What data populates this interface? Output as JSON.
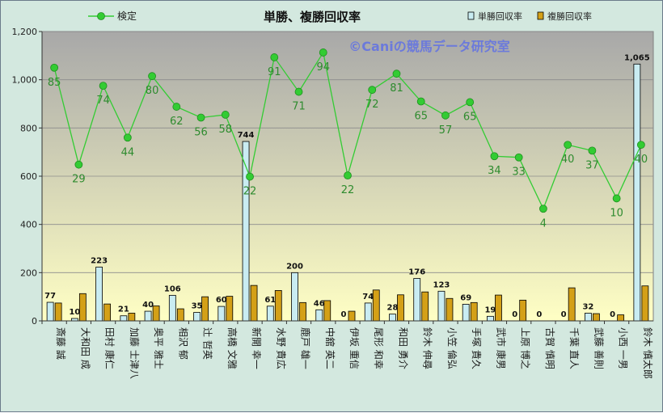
{
  "chart_data": {
    "type": "bar",
    "title": "単勝、複勝回収率",
    "watermark": "©Caniの競馬データ研究室",
    "ylim": [
      0,
      1200
    ],
    "yticks": [
      "0",
      "200",
      "400",
      "600",
      "800",
      "1,000",
      "1,200"
    ],
    "ytick_values": [
      0,
      200,
      400,
      600,
      800,
      1000,
      1200
    ],
    "categories": [
      "斎藤 誠",
      "大和田 成",
      "田村 康仁",
      "加藤 士津八",
      "奥平 雅士",
      "相沢 郁",
      "辻 哲英",
      "高橋 文雅",
      "新開 幸一",
      "水野 貴広",
      "鹿戸 雄一",
      "中舘 英二",
      "伊坂 重信",
      "尾形 和幸",
      "和田 勇介",
      "鈴木 伸尋",
      "小笠 倫弘",
      "手塚 貴久",
      "武市 康男",
      "上原 博之",
      "古賀 慎明",
      "千葉 直人",
      "武藤 善則",
      "小西 一男",
      "鈴木 慎太郎"
    ],
    "series": [
      {
        "name": "単勝回収率",
        "values": [
          77,
          10,
          223,
          21,
          40,
          106,
          35,
          60,
          744,
          61,
          200,
          46,
          0,
          74,
          28,
          176,
          123,
          69,
          19,
          0,
          0,
          0,
          32,
          0,
          1065
        ],
        "labels": [
          "77",
          "10",
          "223",
          "21",
          "40",
          "106",
          "35",
          "60",
          "744",
          "61",
          "200",
          "46",
          "0",
          "74",
          "28",
          "176",
          "123",
          "69",
          "19",
          "0",
          "0",
          "0",
          "32",
          "0",
          "1,065"
        ],
        "color": "#c9ecf2"
      },
      {
        "name": "複勝回収率",
        "values": [
          74,
          113,
          70,
          32,
          62,
          50,
          100,
          102,
          147,
          126,
          76,
          84,
          40,
          128,
          108,
          120,
          93,
          76,
          107,
          86,
          0,
          137,
          30,
          25,
          145
        ],
        "color": "#d4a017"
      },
      {
        "name": "検定",
        "values": [
          1050,
          648,
          975,
          760,
          1015,
          888,
          843,
          855,
          598,
          1093,
          950,
          1113,
          603,
          958,
          1025,
          910,
          852,
          907,
          683,
          678,
          465,
          730,
          706,
          508,
          730
        ],
        "labels": [
          "85",
          "29",
          "74",
          "44",
          "80",
          "62",
          "56",
          "58",
          "22",
          "91",
          "71",
          "94",
          "22",
          "72",
          "81",
          "65",
          "57",
          "65",
          "34",
          "33",
          "4",
          "40",
          "37",
          "10",
          "40"
        ],
        "color": "#33cc33"
      }
    ],
    "legend": "top",
    "grid": true
  },
  "colors": {
    "plot_top": "#a8a8a8",
    "plot_bottom": "#ffffc4",
    "line": "#33cc33",
    "line_label": "#2e8b2e"
  }
}
